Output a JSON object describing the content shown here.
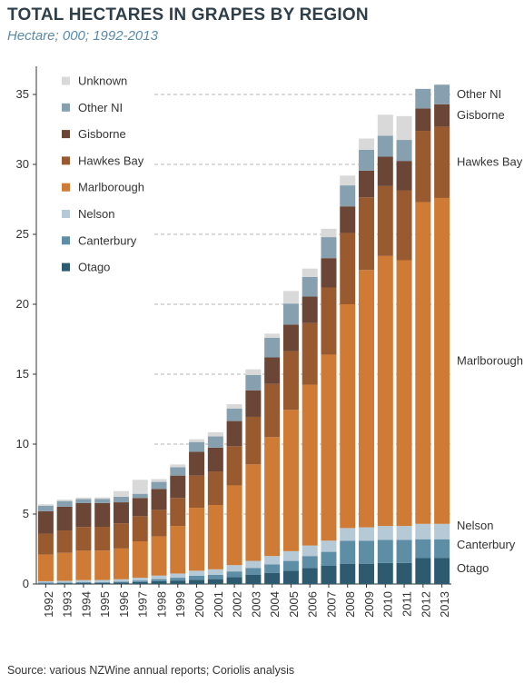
{
  "header": {
    "title": "TOTAL HECTARES IN GRAPES BY REGION",
    "subtitle": "Hectare; 000; 1992-2013"
  },
  "footer": {
    "source": "Source: various NZWine annual reports; Coriolis analysis"
  },
  "chart_data": {
    "type": "bar",
    "stacked": true,
    "title": "TOTAL HECTARES IN GRAPES BY REGION",
    "subtitle": "Hectare; 000; 1992-2013",
    "categories": [
      "1992",
      "1993",
      "1994",
      "1995",
      "1996",
      "1997",
      "1998",
      "1999",
      "2000",
      "2001",
      "2002",
      "2003",
      "2004",
      "2005",
      "2006",
      "2007",
      "2008",
      "2009",
      "2010",
      "2011",
      "2012",
      "2013"
    ],
    "ylim": [
      0,
      37
    ],
    "yticks": [
      0,
      5,
      10,
      15,
      20,
      25,
      30,
      35
    ],
    "grid": "horizontal dashed",
    "legend_position": "top-left",
    "series": [
      {
        "name": "Otago",
        "color": "#2e5a70",
        "values": [
          0.05,
          0.06,
          0.07,
          0.08,
          0.1,
          0.15,
          0.2,
          0.25,
          0.3,
          0.35,
          0.5,
          0.65,
          0.8,
          0.95,
          1.15,
          1.3,
          1.45,
          1.45,
          1.5,
          1.5,
          1.85,
          1.85
        ]
      },
      {
        "name": "Canterbury",
        "color": "#5d8ea6",
        "values": [
          0.05,
          0.05,
          0.06,
          0.06,
          0.07,
          0.1,
          0.15,
          0.2,
          0.3,
          0.3,
          0.4,
          0.5,
          0.6,
          0.7,
          0.85,
          1.0,
          1.65,
          1.65,
          1.65,
          1.65,
          1.35,
          1.35
        ]
      },
      {
        "name": "Nelson",
        "color": "#b6c9d6",
        "values": [
          0.1,
          0.12,
          0.15,
          0.15,
          0.17,
          0.2,
          0.25,
          0.3,
          0.35,
          0.4,
          0.45,
          0.5,
          0.6,
          0.7,
          0.75,
          0.8,
          0.9,
          0.95,
          1.0,
          1.0,
          1.1,
          1.1
        ]
      },
      {
        "name": "Marlborough",
        "color": "#cf7a35",
        "values": [
          1.9,
          2.0,
          2.1,
          2.1,
          2.2,
          2.6,
          2.8,
          3.4,
          4.5,
          4.6,
          5.7,
          6.9,
          8.5,
          10.1,
          11.5,
          13.3,
          16.0,
          18.4,
          19.3,
          19.0,
          23.0,
          23.3
        ]
      },
      {
        "name": "Hawkes Bay",
        "color": "#9a5a30",
        "values": [
          1.5,
          1.6,
          1.7,
          1.7,
          1.8,
          1.8,
          1.9,
          2.0,
          2.3,
          2.4,
          2.8,
          3.4,
          3.8,
          4.2,
          4.4,
          4.8,
          5.1,
          5.2,
          5.0,
          5.0,
          5.1,
          5.1
        ]
      },
      {
        "name": "Gisborne",
        "color": "#6b4636",
        "values": [
          1.6,
          1.7,
          1.7,
          1.7,
          1.5,
          1.3,
          1.5,
          1.6,
          1.7,
          1.7,
          1.8,
          1.9,
          1.9,
          1.9,
          1.9,
          2.1,
          1.9,
          1.9,
          2.1,
          2.1,
          1.6,
          1.6
        ]
      },
      {
        "name": "Other NI",
        "color": "#87a0b0",
        "values": [
          0.4,
          0.4,
          0.3,
          0.3,
          0.4,
          0.3,
          0.5,
          0.6,
          0.7,
          0.8,
          0.9,
          1.1,
          1.4,
          1.5,
          1.4,
          1.5,
          1.5,
          1.5,
          1.5,
          1.5,
          1.4,
          1.4
        ]
      },
      {
        "name": "Unknown",
        "color": "#d9d9d9",
        "values": [
          0.1,
          0.1,
          0.1,
          0.1,
          0.4,
          1.0,
          0.2,
          0.2,
          0.2,
          0.3,
          0.3,
          0.4,
          0.3,
          0.9,
          0.6,
          0.6,
          0.7,
          0.8,
          1.5,
          1.7,
          0,
          0
        ]
      }
    ],
    "legend": [
      "Unknown",
      "Other NI",
      "Gisborne",
      "Hawkes Bay",
      "Marlborough",
      "Nelson",
      "Canterbury",
      "Otago"
    ],
    "right_labels": [
      "Other NI",
      "Gisborne",
      "Hawkes Bay",
      "Marlborough",
      "Nelson",
      "Canterbury",
      "Otago"
    ]
  }
}
